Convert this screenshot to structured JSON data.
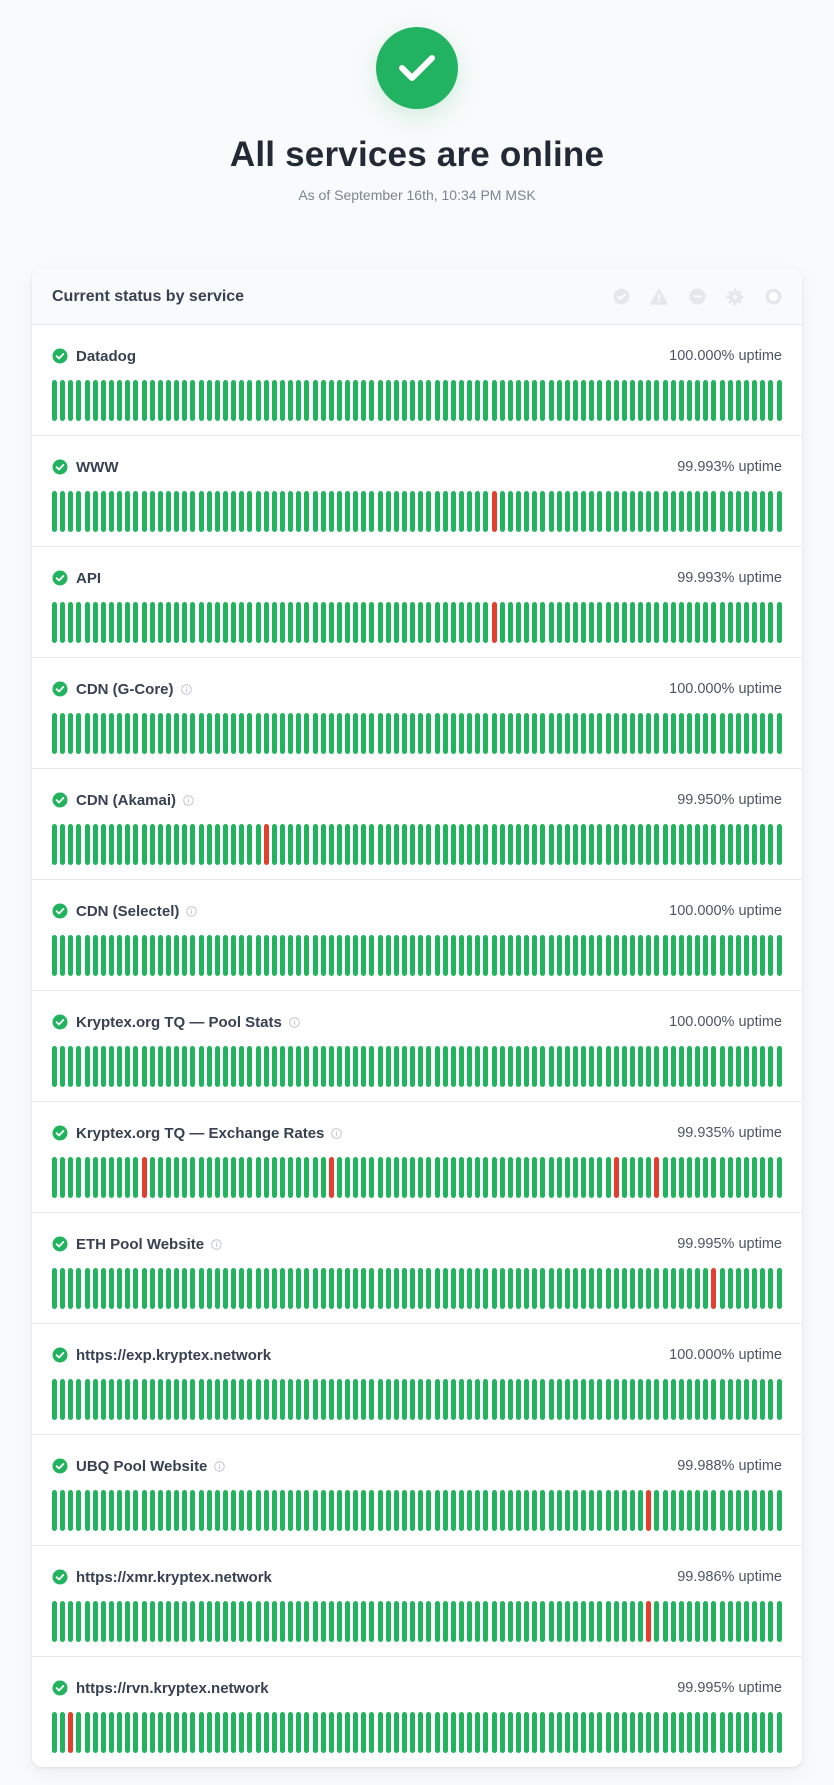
{
  "header": {
    "status_title": "All services are online",
    "status_subtitle": "As of September 16th, 10:34 PM MSK",
    "status_icon": "check-icon"
  },
  "colors": {
    "operational": "#22b35e",
    "outage": "#e0402c"
  },
  "card": {
    "title": "Current status by service",
    "legend_icons": [
      "operational-icon",
      "degraded-icon",
      "outage-icon",
      "maintenance-icon",
      "unknown-icon"
    ]
  },
  "bars_per_service": 90,
  "services": [
    {
      "name": "Datadog",
      "uptime": "100.000% uptime",
      "info": false,
      "outage_days": []
    },
    {
      "name": "WWW",
      "uptime": "99.993% uptime",
      "info": false,
      "outage_days": [
        54
      ]
    },
    {
      "name": "API",
      "uptime": "99.993% uptime",
      "info": false,
      "outage_days": [
        54
      ]
    },
    {
      "name": "CDN (G-Core)",
      "uptime": "100.000% uptime",
      "info": true,
      "outage_days": []
    },
    {
      "name": "CDN (Akamai)",
      "uptime": "99.950% uptime",
      "info": true,
      "outage_days": [
        26
      ]
    },
    {
      "name": "CDN (Selectel)",
      "uptime": "100.000% uptime",
      "info": true,
      "outage_days": []
    },
    {
      "name": "Kryptex.org TQ — Pool Stats",
      "uptime": "100.000% uptime",
      "info": true,
      "outage_days": []
    },
    {
      "name": "Kryptex.org TQ — Exchange Rates",
      "uptime": "99.935% uptime",
      "info": true,
      "outage_days": [
        11,
        34,
        69,
        74
      ]
    },
    {
      "name": "ETH Pool Website",
      "uptime": "99.995% uptime",
      "info": true,
      "outage_days": [
        81
      ]
    },
    {
      "name": "https://exp.kryptex.network",
      "uptime": "100.000% uptime",
      "info": false,
      "outage_days": []
    },
    {
      "name": "UBQ Pool Website",
      "uptime": "99.988% uptime",
      "info": true,
      "outage_days": [
        73
      ]
    },
    {
      "name": "https://xmr.kryptex.network",
      "uptime": "99.986% uptime",
      "info": false,
      "outage_days": [
        73
      ]
    },
    {
      "name": "https://rvn.kryptex.network",
      "uptime": "99.995% uptime",
      "info": false,
      "outage_days": [
        2
      ]
    }
  ]
}
